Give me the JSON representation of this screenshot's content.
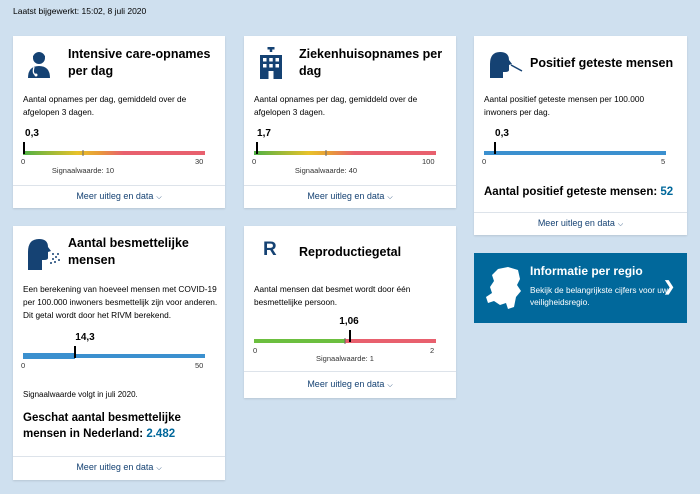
{
  "updated": "Laatst bijgewerkt: 15:02, 8 juli 2020",
  "more_label": "Meer uitleg en data",
  "colors": {
    "brand": "#01689b",
    "link": "#154273",
    "background": "#cfe0ef"
  },
  "ic": {
    "title": "Intensive care-opnames per dag",
    "icon": "nurse-icon",
    "description": "Aantal opnames per dag, gemiddeld over de afgelopen 3 dagen.",
    "value": "0,3",
    "value_num": 0.3,
    "min": "0",
    "max": "30",
    "max_num": 30,
    "signal_label": "Signaalwaarde: 10",
    "signal_num": 10
  },
  "hospital": {
    "title": "Ziekenhuisopnames per dag",
    "icon": "hospital-icon",
    "description": "Aantal opnames per dag, gemiddeld over de afgelopen 3 dagen.",
    "value": "1,7",
    "value_num": 1.7,
    "min": "0",
    "max": "100",
    "max_num": 100,
    "signal_label": "Signaalwaarde: 40",
    "signal_num": 40
  },
  "positive": {
    "title": "Positief geteste mensen",
    "icon": "swab-test-icon",
    "description": "Aantal positief geteste mensen per 100.000 inwoners per dag.",
    "value": "0,3",
    "value_num": 0.3,
    "min": "0",
    "max": "5",
    "max_num": 5,
    "total_label": "Aantal positief geteste mensen:",
    "total_value": "52"
  },
  "infectious": {
    "title": "Aantal besmettelijke mensen",
    "icon": "sneezing-person-icon",
    "description": "Een berekening van hoeveel mensen met COVID-19 per 100.000 inwoners besmettelijk zijn voor anderen. Dit getal wordt door het RIVM berekend.",
    "value": "14,3",
    "value_num": 14.3,
    "min": "0",
    "max": "50",
    "max_num": 50,
    "signal_note": "Signaalwaarde volgt in juli 2020.",
    "estimate_label": "Geschat aantal besmettelijke mensen in Nederland:",
    "estimate_value": "2.482"
  },
  "reproduction": {
    "title": "Reproductiegetal",
    "icon_letter": "R",
    "description": "Aantal mensen dat besmet wordt door één besmettelijke persoon.",
    "value": "1,06",
    "value_num": 1.06,
    "min": "0",
    "max": "2",
    "max_num": 2,
    "signal_label": "Signaalwaarde: 1",
    "signal_num": 1
  },
  "region": {
    "icon": "netherlands-map-icon",
    "title": "Informatie per regio",
    "description": "Bekijk de belangrijkste cijfers voor uw veiligheidsregio."
  }
}
